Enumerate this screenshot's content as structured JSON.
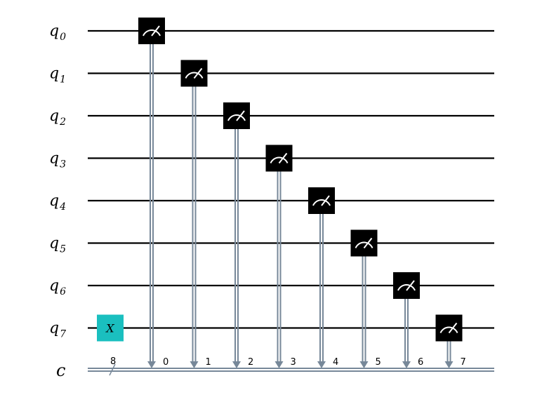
{
  "circuit": {
    "qubits": [
      {
        "base": "q",
        "sub": "0"
      },
      {
        "base": "q",
        "sub": "1"
      },
      {
        "base": "q",
        "sub": "2"
      },
      {
        "base": "q",
        "sub": "3"
      },
      {
        "base": "q",
        "sub": "4"
      },
      {
        "base": "q",
        "sub": "5"
      },
      {
        "base": "q",
        "sub": "6"
      },
      {
        "base": "q",
        "sub": "7"
      }
    ],
    "classical_register": {
      "label": "c",
      "width": "8"
    },
    "gates": [
      {
        "type": "x",
        "label": "X",
        "qubit": 7,
        "color": "#1abfbf"
      }
    ],
    "measurements": [
      {
        "qubit": 0,
        "bit": "0"
      },
      {
        "qubit": 1,
        "bit": "1"
      },
      {
        "qubit": 2,
        "bit": "2"
      },
      {
        "qubit": 3,
        "bit": "3"
      },
      {
        "qubit": 4,
        "bit": "4"
      },
      {
        "qubit": 5,
        "bit": "5"
      },
      {
        "qubit": 6,
        "bit": "6"
      },
      {
        "qubit": 7,
        "bit": "7"
      }
    ],
    "colors": {
      "wire": "#000000",
      "classical_wire": "#778899",
      "measure_box": "#000000",
      "measure_symbol": "#ffffff"
    }
  }
}
